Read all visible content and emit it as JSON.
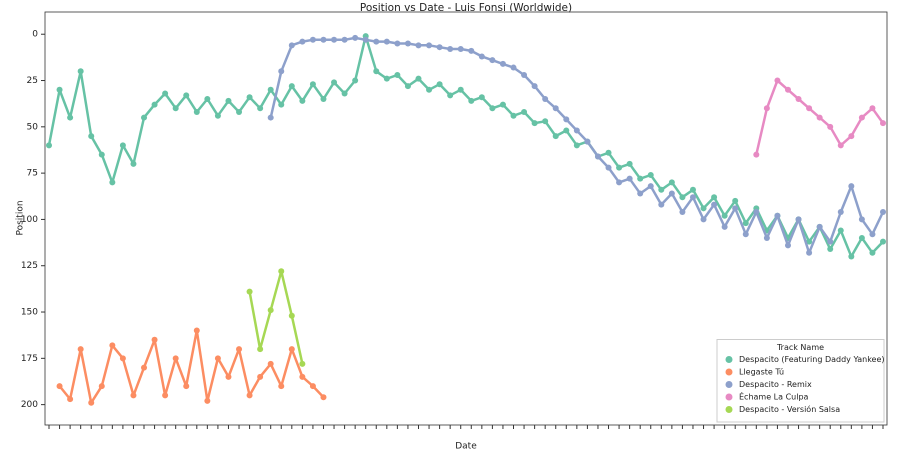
{
  "chart_data": {
    "type": "line",
    "title": "Position vs Date - Luis Fonsi (Worldwide)",
    "x_label": "Date",
    "y_label": "Position",
    "categories": [
      null,
      null,
      null,
      null,
      null,
      null,
      null,
      null,
      null,
      null,
      null,
      null,
      null,
      null,
      null,
      null,
      null,
      null,
      null,
      null,
      null,
      null,
      null,
      null,
      null,
      null,
      null,
      null,
      null,
      null,
      null,
      null,
      null,
      null,
      null,
      null,
      null,
      null,
      null,
      null,
      null,
      null,
      null,
      null,
      null,
      null,
      null,
      null,
      null,
      null,
      null,
      null,
      null,
      null,
      null,
      null,
      null,
      null,
      null,
      null,
      null,
      null,
      null,
      null,
      null,
      null,
      null,
      null,
      null,
      null,
      null,
      null,
      null,
      null,
      null,
      null,
      null,
      null,
      null,
      null
    ],
    "ylim": [
      -12,
      211
    ],
    "y_inverted": true,
    "yticks": [
      0,
      25,
      50,
      75,
      100,
      125,
      150,
      175,
      200
    ],
    "legend_title": "Track Name",
    "legend": "lower right",
    "series": [
      {
        "name": "Despacito (Featuring Daddy Yankee)",
        "color": "#66c2a5",
        "values": [
          60,
          30,
          45,
          20,
          55,
          65,
          80,
          60,
          70,
          45,
          38,
          32,
          40,
          33,
          42,
          35,
          44,
          36,
          42,
          34,
          40,
          30,
          38,
          28,
          36,
          27,
          35,
          26,
          32,
          25,
          1,
          20,
          24,
          22,
          28,
          24,
          30,
          27,
          33,
          30,
          36,
          34,
          40,
          38,
          44,
          42,
          48,
          47,
          55,
          52,
          60,
          58,
          66,
          64,
          72,
          70,
          78,
          76,
          84,
          80,
          88,
          84,
          94,
          88,
          98,
          90,
          102,
          94,
          106,
          98,
          110,
          100,
          112,
          104,
          116,
          106,
          120,
          110,
          118,
          112
        ]
      },
      {
        "name": "Llegaste Tú",
        "color": "#fc8d62",
        "values": [
          null,
          190,
          197,
          170,
          199,
          190,
          168,
          175,
          195,
          180,
          165,
          195,
          175,
          190,
          160,
          198,
          175,
          185,
          170,
          195,
          185,
          178,
          190,
          170,
          185,
          190,
          196,
          null,
          null,
          null,
          null,
          null,
          null,
          null,
          null,
          null,
          null,
          null,
          null,
          null,
          null,
          null,
          null,
          null,
          null,
          null,
          null,
          null,
          null,
          null,
          null,
          null,
          null,
          null,
          null,
          null,
          null,
          null,
          null,
          null,
          null,
          null,
          null,
          null,
          null,
          null,
          null,
          null,
          null,
          null,
          null,
          null,
          null,
          null,
          null,
          null,
          null,
          null,
          null,
          null
        ]
      },
      {
        "name": "Despacito - Remix",
        "color": "#8da0cb",
        "values": [
          null,
          null,
          null,
          null,
          null,
          null,
          null,
          null,
          null,
          null,
          null,
          null,
          null,
          null,
          null,
          null,
          null,
          null,
          null,
          null,
          null,
          45,
          20,
          6,
          4,
          3,
          3,
          3,
          3,
          2,
          3,
          4,
          4,
          5,
          5,
          6,
          6,
          7,
          8,
          8,
          9,
          12,
          14,
          16,
          18,
          22,
          28,
          35,
          40,
          46,
          52,
          58,
          66,
          72,
          80,
          78,
          86,
          82,
          92,
          86,
          96,
          88,
          100,
          92,
          104,
          94,
          108,
          96,
          110,
          98,
          114,
          100,
          118,
          104,
          112,
          96,
          82,
          100,
          108,
          96
        ]
      },
      {
        "name": "Échame La Culpa",
        "color": "#e78ac3",
        "values": [
          null,
          null,
          null,
          null,
          null,
          null,
          null,
          null,
          null,
          null,
          null,
          null,
          null,
          null,
          null,
          null,
          null,
          null,
          null,
          null,
          null,
          null,
          null,
          null,
          null,
          null,
          null,
          null,
          null,
          null,
          null,
          null,
          null,
          null,
          null,
          null,
          null,
          null,
          null,
          null,
          null,
          null,
          null,
          null,
          null,
          null,
          null,
          null,
          null,
          null,
          null,
          null,
          null,
          null,
          null,
          null,
          null,
          null,
          null,
          null,
          null,
          null,
          null,
          null,
          null,
          null,
          null,
          65,
          40,
          25,
          30,
          35,
          40,
          45,
          50,
          60,
          55,
          45,
          40,
          48
        ]
      },
      {
        "name": "Despacito - Versión Salsa",
        "color": "#a6d854",
        "values": [
          null,
          null,
          null,
          null,
          null,
          null,
          null,
          null,
          null,
          null,
          null,
          null,
          null,
          null,
          null,
          null,
          null,
          null,
          null,
          139,
          170,
          149,
          128,
          152,
          178,
          null,
          null,
          null,
          null,
          null,
          null,
          null,
          null,
          null,
          null,
          null,
          null,
          null,
          null,
          null,
          null,
          null,
          null,
          null,
          null,
          null,
          null,
          null,
          null,
          null,
          null,
          null,
          null,
          null,
          null,
          null,
          null,
          null,
          null,
          null,
          null,
          null,
          null,
          null,
          null,
          null,
          null,
          null,
          null,
          null,
          null,
          null,
          null,
          null,
          null,
          null,
          null,
          null,
          null,
          null
        ]
      }
    ]
  }
}
